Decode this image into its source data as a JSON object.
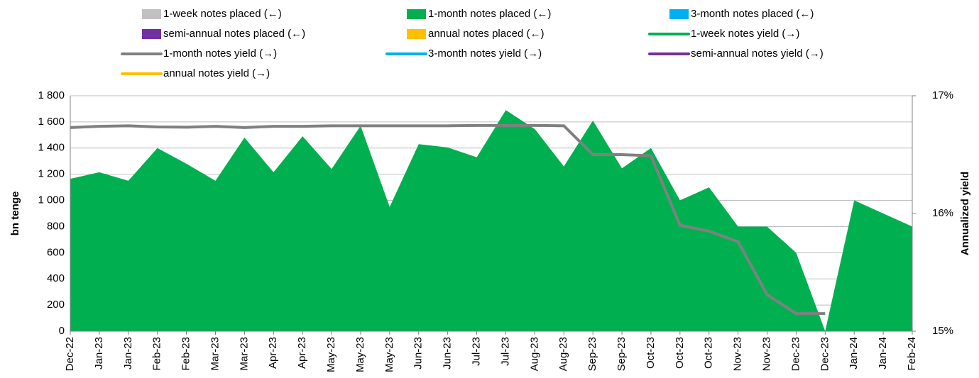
{
  "chart_data": {
    "type": "area-line",
    "categories": [
      "Dec-22",
      "Jan-23",
      "Jan-23",
      "Feb-23",
      "Feb-23",
      "Mar-23",
      "Mar-23",
      "Apr-23",
      "Apr-23",
      "May-23",
      "May-23",
      "May-23",
      "Jun-23",
      "Jun-23",
      "Jul-23",
      "Jul-23",
      "Aug-23",
      "Aug-23",
      "Sep-23",
      "Sep-23",
      "Oct-23",
      "Oct-23",
      "Oct-23",
      "Nov-23",
      "Nov-23",
      "Dec-23",
      "Dec-23",
      "Jan-24",
      "Jan-24",
      "Feb-24"
    ],
    "ylabel": "bn tenge",
    "y2label": "Annualized yield",
    "ylim": [
      0,
      1800
    ],
    "yticks": [
      0,
      200,
      400,
      600,
      800,
      {
        "value": 1000,
        "label": "1 000"
      },
      {
        "value": 1200,
        "label": "1 200"
      },
      {
        "value": 1400,
        "label": "1 400"
      },
      {
        "value": 1600,
        "label": "1 600"
      },
      {
        "value": 1800,
        "label": "1 800"
      }
    ],
    "y2lim": [
      15,
      17
    ],
    "y2ticks": [
      {
        "value": 15,
        "label": "15%"
      },
      {
        "value": 16,
        "label": "16%"
      },
      {
        "value": 17,
        "label": "17%"
      }
    ],
    "grid": true,
    "series": [
      {
        "name": "1-week notes placed (←)",
        "kind": "area",
        "color": "#c0c0c0",
        "values": [
          null,
          null,
          null,
          null,
          null,
          null,
          null,
          null,
          null,
          null,
          null,
          null,
          null,
          null,
          null,
          null,
          null,
          null,
          null,
          null,
          null,
          null,
          null,
          null,
          null,
          null,
          null,
          null,
          null,
          null
        ]
      },
      {
        "name": "1-month notes placed (←)",
        "kind": "area",
        "color": "#00b050",
        "values": [
          1165,
          1215,
          1150,
          1400,
          1280,
          1150,
          1480,
          1215,
          1490,
          1240,
          1570,
          950,
          1430,
          1405,
          1330,
          1690,
          1545,
          1260,
          1610,
          1245,
          1400,
          1000,
          1100,
          800,
          800,
          600,
          0,
          1000,
          900,
          800
        ]
      },
      {
        "name": " 3-month notes placed (←)",
        "kind": "area",
        "color": "#00b0f0",
        "values": [
          null,
          null,
          null,
          null,
          null,
          null,
          null,
          null,
          null,
          null,
          null,
          null,
          null,
          null,
          null,
          null,
          null,
          null,
          null,
          null,
          null,
          null,
          null,
          null,
          null,
          null,
          null,
          null,
          null,
          null
        ]
      },
      {
        "name": "semi-annual notes placed (←)",
        "kind": "area",
        "color": "#7030a0",
        "values": [
          null,
          null,
          null,
          null,
          null,
          null,
          null,
          null,
          null,
          null,
          null,
          null,
          null,
          null,
          null,
          null,
          null,
          null,
          null,
          null,
          null,
          null,
          null,
          null,
          null,
          null,
          null,
          null,
          null,
          null
        ]
      },
      {
        "name": "annual notes placed (←)",
        "kind": "area",
        "color": "#ffc000",
        "values": [
          null,
          null,
          null,
          null,
          null,
          null,
          null,
          null,
          null,
          null,
          null,
          null,
          null,
          null,
          null,
          null,
          null,
          null,
          null,
          null,
          null,
          null,
          null,
          null,
          null,
          null,
          null,
          null,
          null,
          null
        ]
      },
      {
        "name": "1-week notes yield (→)",
        "kind": "line",
        "axis": "y2",
        "color": "#00b050",
        "values": [
          null,
          null,
          null,
          null,
          null,
          null,
          null,
          null,
          null,
          null,
          null,
          null,
          null,
          null,
          null,
          null,
          null,
          null,
          null,
          null,
          null,
          null,
          null,
          null,
          null,
          null,
          null,
          null,
          null,
          null
        ]
      },
      {
        "name": "1-month notes yield (→)",
        "kind": "line",
        "axis": "y2",
        "color": "#808080",
        "values": [
          16.73,
          16.74,
          16.745,
          16.735,
          16.733,
          16.74,
          16.73,
          16.74,
          16.74,
          16.745,
          16.745,
          16.745,
          16.745,
          16.745,
          16.748,
          16.748,
          16.748,
          16.745,
          16.5,
          16.5,
          16.49,
          15.9,
          15.85,
          15.76,
          15.31,
          15.15,
          15.15,
          null,
          null,
          null
        ]
      },
      {
        "name": "3-month notes yield (→)",
        "kind": "line",
        "axis": "y2",
        "color": "#00b0f0",
        "values": [
          null,
          null,
          null,
          null,
          null,
          null,
          null,
          null,
          null,
          null,
          null,
          null,
          null,
          null,
          null,
          null,
          null,
          null,
          null,
          null,
          null,
          null,
          null,
          null,
          null,
          null,
          null,
          null,
          null,
          null
        ]
      },
      {
        "name": "semi-annual notes yield (→)",
        "kind": "line",
        "axis": "y2",
        "color": "#7030a0",
        "values": [
          null,
          null,
          null,
          null,
          null,
          null,
          null,
          null,
          null,
          null,
          null,
          null,
          null,
          null,
          null,
          null,
          null,
          null,
          null,
          null,
          null,
          null,
          null,
          null,
          null,
          null,
          null,
          null,
          null,
          null
        ]
      },
      {
        "name": "annual notes yield (→)",
        "kind": "line",
        "axis": "y2",
        "color": "#ffc000",
        "values": [
          null,
          null,
          null,
          null,
          null,
          null,
          null,
          null,
          null,
          null,
          null,
          null,
          null,
          null,
          null,
          null,
          null,
          null,
          null,
          null,
          null,
          null,
          null,
          null,
          null,
          null,
          null,
          null,
          null,
          null
        ]
      }
    ]
  }
}
